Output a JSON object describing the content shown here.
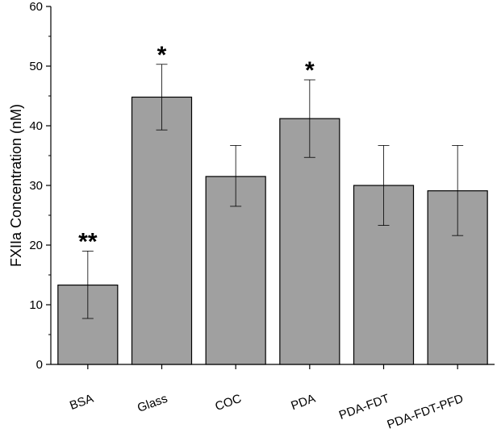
{
  "chart_data": {
    "type": "bar",
    "categories": [
      "BSA",
      "Glass",
      "COC",
      "PDA",
      "PDA-FDT",
      "PDA-FDT-PFD"
    ],
    "values": [
      13.3,
      44.8,
      31.5,
      41.2,
      30.0,
      29.1
    ],
    "error_low": [
      7.7,
      39.3,
      26.5,
      34.7,
      23.3,
      21.6
    ],
    "error_high": [
      19.0,
      50.3,
      36.7,
      47.7,
      36.7,
      36.7
    ],
    "significance": [
      "**",
      "*",
      "",
      "*",
      "",
      ""
    ],
    "ylabel": "FXIIa Concentration (nM)",
    "xlabel": "",
    "title": "",
    "ylim": [
      0,
      60
    ],
    "yticks": [
      0,
      10,
      20,
      30,
      40,
      50,
      60
    ],
    "bar_color": "#a0a0a0",
    "edge_color": "#000000"
  }
}
